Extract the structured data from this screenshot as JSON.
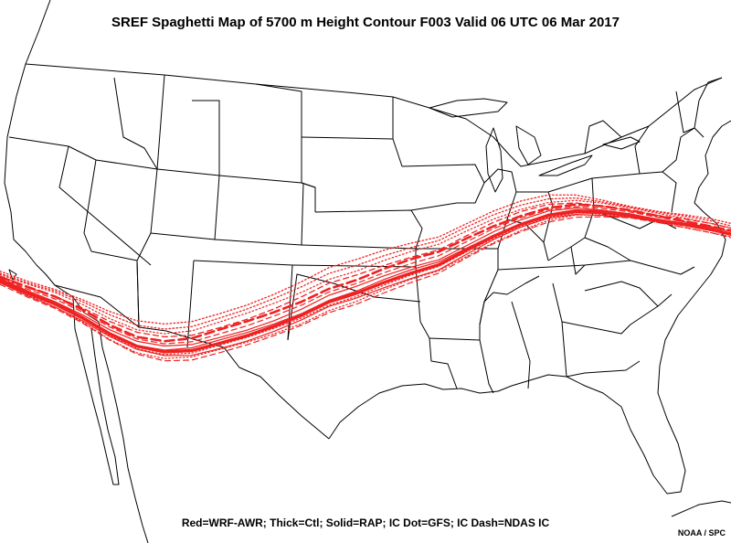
{
  "title": "SREF Spaghetti Map of 5700 m Height Contour F003 Valid 06 UTC 06 Mar 2017",
  "legend": "Red=WRF-AWR; Thick=Ctl; Solid=RAP; IC Dot=GFS; IC Dash=NDAS IC",
  "credit": "NOAA / SPC",
  "colors": {
    "contour": "#ee2222",
    "boundary": "#000000",
    "background": "#ffffff"
  },
  "contour_level_m": 5700,
  "forecast_hour": "F003"
}
